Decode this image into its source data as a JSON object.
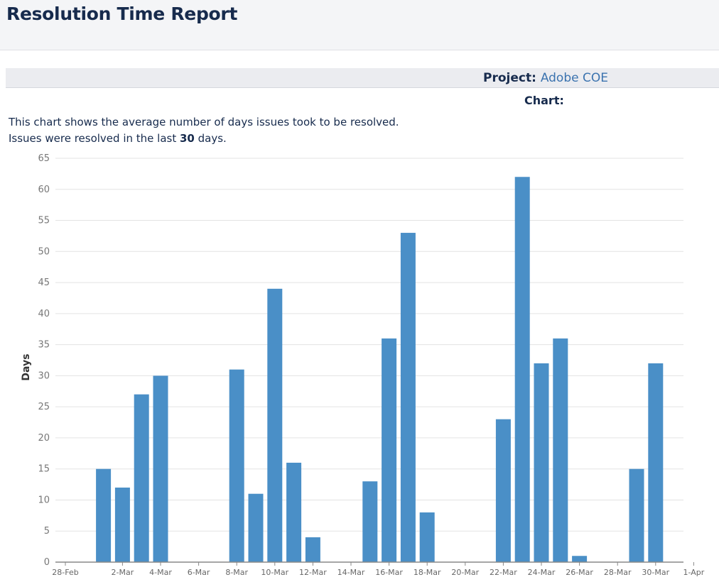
{
  "header": {
    "title": "Resolution Time Report"
  },
  "filter": {
    "project_label": "Project:",
    "project_value": "Adobe COE",
    "chart_label": "Chart:"
  },
  "description": {
    "line1": "This chart shows the average number of days issues took to be resolved.",
    "line2_prefix": "Issues were resolved in the last ",
    "line2_value": "30",
    "line2_suffix": " days."
  },
  "colors": {
    "bar": "#4a8fc7",
    "grid": "#e3e3e3",
    "axis": "#888888"
  },
  "chart_data": {
    "type": "bar",
    "title": "",
    "xlabel": "",
    "ylabel": "Days",
    "ylim": [
      0,
      65
    ],
    "yticks": [
      0,
      5,
      10,
      15,
      20,
      25,
      30,
      35,
      40,
      45,
      50,
      55,
      60,
      65
    ],
    "grid": true,
    "x_start": "28-Feb",
    "x_end": "1-Apr",
    "categories": [
      "28-Feb",
      "29-Feb",
      "1-Mar",
      "2-Mar",
      "3-Mar",
      "4-Mar",
      "5-Mar",
      "6-Mar",
      "7-Mar",
      "8-Mar",
      "9-Mar",
      "10-Mar",
      "11-Mar",
      "12-Mar",
      "13-Mar",
      "14-Mar",
      "15-Mar",
      "16-Mar",
      "17-Mar",
      "18-Mar",
      "19-Mar",
      "20-Mar",
      "21-Mar",
      "22-Mar",
      "23-Mar",
      "24-Mar",
      "25-Mar",
      "26-Mar",
      "27-Mar",
      "28-Mar",
      "29-Mar",
      "30-Mar",
      "31-Mar",
      "1-Apr"
    ],
    "tick_labels": [
      "28-Feb",
      "2-Mar",
      "4-Mar",
      "6-Mar",
      "8-Mar",
      "10-Mar",
      "12-Mar",
      "14-Mar",
      "16-Mar",
      "18-Mar",
      "20-Mar",
      "22-Mar",
      "24-Mar",
      "26-Mar",
      "28-Mar",
      "30-Mar",
      "1-Apr"
    ],
    "values": [
      0,
      0,
      15,
      12,
      27,
      30,
      0,
      0,
      0,
      31,
      11,
      44,
      16,
      4,
      0,
      0,
      13,
      36,
      53,
      8,
      0,
      0,
      0,
      23,
      62,
      32,
      36,
      1,
      0,
      0,
      15,
      32,
      0,
      0
    ]
  }
}
